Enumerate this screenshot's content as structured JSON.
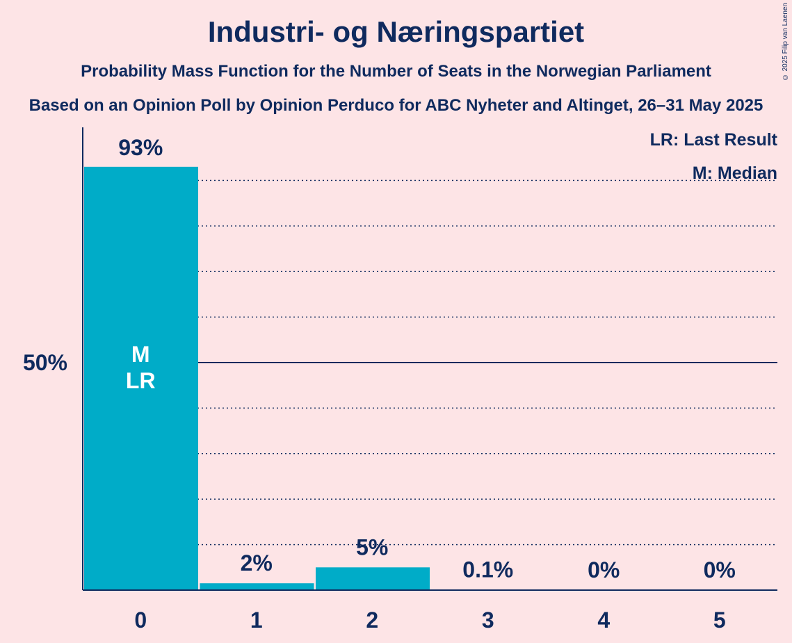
{
  "title": "Industri- og Næringspartiet",
  "subtitle": "Probability Mass Function for the Number of Seats in the Norwegian Parliament",
  "subtitle2": "Based on an Opinion Poll by Opinion Perduco for ABC Nyheter and Altinget, 26–31 May 2025",
  "copyright": "© 2025 Filip van Laenen",
  "legend": {
    "last_result": "LR: Last Result",
    "median": "M: Median"
  },
  "colors": {
    "bar": "#00ACC8",
    "text": "#0F2A5E",
    "background": "#FDE4E6"
  },
  "chart_data": {
    "type": "bar",
    "categories": [
      "0",
      "1",
      "2",
      "3",
      "4",
      "5"
    ],
    "values": [
      93,
      1.5,
      5,
      0.1,
      0,
      0
    ],
    "data_labels": [
      "93%",
      "2%",
      "5%",
      "0.1%",
      "0%",
      "0%"
    ],
    "bar_annotations": {
      "0": [
        "M",
        "LR"
      ]
    },
    "ytick_labels": [
      "50%"
    ],
    "ytick_values": [
      50
    ],
    "ylim": [
      0,
      100
    ],
    "gridlines": [
      10,
      20,
      30,
      40,
      60,
      70,
      80,
      90
    ],
    "xlabel": "",
    "ylabel": ""
  }
}
